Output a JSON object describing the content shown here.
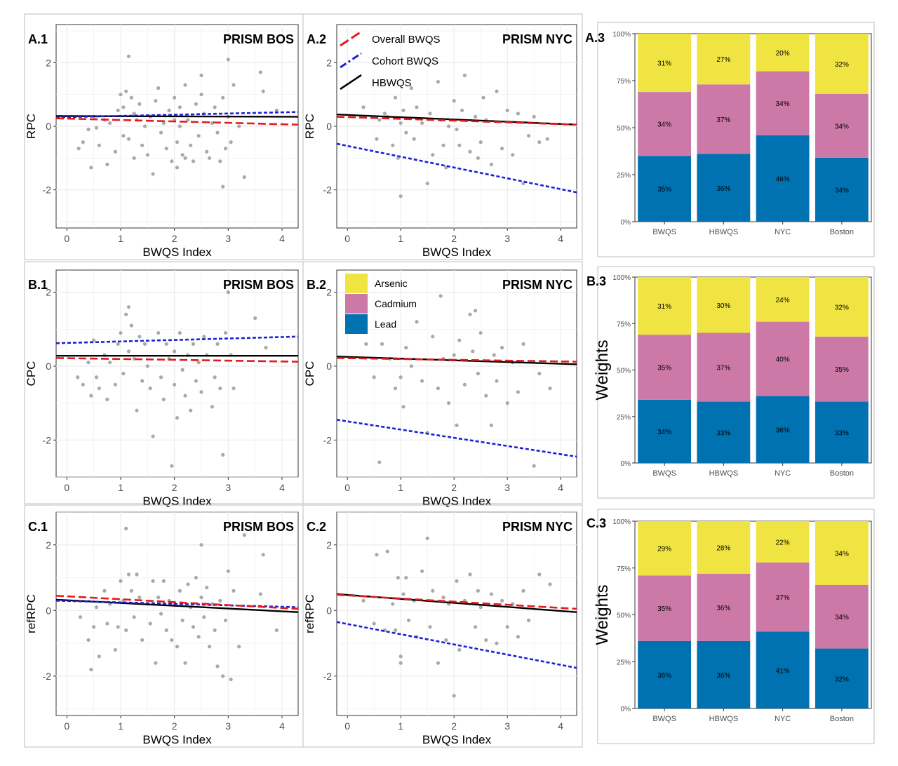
{
  "colors": {
    "overall": "#e41a1c",
    "cohort": "#1f1fd6",
    "hbwqs": "#000000",
    "point": "#a9a9a9",
    "arsenic": "#f0e442",
    "cadmium": "#cc79a7",
    "lead": "#0072b2"
  },
  "legends": {
    "lines": [
      {
        "key": "overall",
        "label": "Overall BWQS"
      },
      {
        "key": "cohort",
        "label": "Cohort BWQS"
      },
      {
        "key": "hbwqs",
        "label": "HBWQS"
      }
    ],
    "metals": [
      {
        "key": "arsenic",
        "label": "Arsenic"
      },
      {
        "key": "cadmium",
        "label": "Cadmium"
      },
      {
        "key": "lead",
        "label": "Lead"
      }
    ]
  },
  "chart_data": [
    {
      "id": "A1",
      "type": "scatter",
      "panel": "A.1",
      "title": "PRISM BOS",
      "xlabel": "BWQS Index",
      "ylabel": "RPC",
      "xlim": [
        -0.2,
        4.3
      ],
      "ylim": [
        -3.2,
        3.2
      ],
      "xticks": [
        0,
        1,
        2,
        3,
        4
      ],
      "yticks": [
        -2,
        0,
        2
      ],
      "lines": [
        {
          "key": "hbwqs",
          "x": [
            -0.2,
            4.3
          ],
          "y": [
            0.32,
            0.3
          ]
        },
        {
          "key": "cohort",
          "x": [
            -0.2,
            4.3
          ],
          "y": [
            0.28,
            0.45
          ]
        },
        {
          "key": "overall",
          "x": [
            -0.2,
            4.3
          ],
          "y": [
            0.25,
            0.05
          ]
        }
      ],
      "points": {
        "x": [
          0.22,
          0.3,
          0.4,
          0.45,
          0.5,
          0.55,
          0.6,
          0.7,
          0.75,
          0.8,
          0.9,
          0.95,
          1.0,
          1.05,
          1.05,
          1.1,
          1.15,
          1.15,
          1.2,
          1.25,
          1.25,
          1.3,
          1.35,
          1.4,
          1.45,
          1.5,
          1.55,
          1.6,
          1.65,
          1.7,
          1.75,
          1.8,
          1.85,
          1.9,
          1.95,
          2.0,
          2.0,
          2.05,
          2.05,
          2.1,
          2.1,
          2.15,
          2.2,
          2.2,
          2.25,
          2.3,
          2.35,
          2.4,
          2.45,
          2.5,
          2.5,
          2.55,
          2.6,
          2.65,
          2.7,
          2.75,
          2.8,
          2.85,
          2.9,
          2.9,
          2.95,
          3.0,
          3.0,
          3.05,
          3.1,
          3.2,
          3.3,
          3.6,
          3.65,
          3.9
        ],
        "y": [
          -0.7,
          -0.5,
          -0.1,
          -1.3,
          0.3,
          -0.05,
          -0.6,
          0.2,
          -1.2,
          0.1,
          -0.8,
          0.5,
          1.0,
          -0.3,
          0.6,
          1.1,
          2.2,
          -0.4,
          0.9,
          0.4,
          -1.0,
          0.2,
          0.7,
          -0.6,
          0.0,
          -0.9,
          0.3,
          -1.5,
          0.8,
          1.2,
          -0.2,
          0.1,
          -0.7,
          0.5,
          -1.1,
          0.2,
          0.9,
          -0.5,
          -1.3,
          0.0,
          0.6,
          -0.9,
          1.3,
          -1.0,
          0.2,
          -0.6,
          -1.1,
          0.7,
          -0.3,
          1.0,
          1.6,
          0.4,
          -0.8,
          -1.0,
          0.1,
          0.6,
          -0.2,
          -1.1,
          0.9,
          -1.9,
          -0.7,
          0.3,
          2.1,
          -0.5,
          1.3,
          0.0,
          -1.6,
          1.7,
          1.1,
          0.5
        ]
      }
    },
    {
      "id": "A2",
      "type": "scatter",
      "panel": "A.2",
      "title": "PRISM NYC",
      "xlabel": "BWQS Index",
      "ylabel": "RPC",
      "xlim": [
        -0.2,
        4.3
      ],
      "ylim": [
        -3.2,
        3.2
      ],
      "xticks": [
        0,
        1,
        2,
        3,
        4
      ],
      "yticks": [
        -2,
        0,
        2
      ],
      "lines": [
        {
          "key": "hbwqs",
          "x": [
            -0.2,
            4.3
          ],
          "y": [
            0.37,
            0.05
          ]
        },
        {
          "key": "cohort",
          "x": [
            -0.2,
            4.3
          ],
          "y": [
            -0.55,
            -2.08
          ]
        },
        {
          "key": "overall",
          "x": [
            -0.2,
            4.3
          ],
          "y": [
            0.3,
            0.05
          ]
        }
      ],
      "points": {
        "x": [
          0.3,
          0.55,
          0.6,
          0.7,
          0.75,
          0.85,
          0.9,
          0.95,
          1.0,
          1.0,
          1.05,
          1.1,
          1.2,
          1.25,
          1.3,
          1.4,
          1.5,
          1.55,
          1.6,
          1.7,
          1.75,
          1.8,
          1.85,
          1.9,
          2.0,
          2.05,
          2.1,
          2.15,
          2.2,
          2.3,
          2.4,
          2.45,
          2.5,
          2.55,
          2.6,
          2.7,
          2.8,
          2.9,
          3.0,
          3.1,
          3.2,
          3.3,
          3.4,
          3.5,
          3.6,
          3.75
        ],
        "y": [
          0.6,
          -0.4,
          0.2,
          0.4,
          0.3,
          -0.6,
          0.9,
          -1.0,
          0.1,
          -2.2,
          0.5,
          -0.2,
          1.2,
          -0.4,
          0.6,
          0.1,
          -1.8,
          0.4,
          -0.9,
          1.4,
          0.2,
          -0.6,
          -1.3,
          0.0,
          0.8,
          -0.1,
          -0.6,
          0.5,
          1.6,
          -0.8,
          0.3,
          -1.0,
          -0.5,
          0.9,
          0.2,
          -1.2,
          1.1,
          -0.7,
          0.5,
          -0.9,
          0.4,
          -1.8,
          -0.3,
          0.3,
          -0.5,
          -0.4
        ]
      }
    },
    {
      "id": "A3",
      "type": "bar",
      "stacked": true,
      "panel": "A.3",
      "ylabel": "",
      "categories": [
        "BWQS",
        "HBWQS",
        "NYC",
        "Boston"
      ],
      "yticks": [
        "0%",
        "25%",
        "50%",
        "75%",
        "100%"
      ],
      "series": [
        {
          "key": "lead",
          "values": [
            35,
            36,
            46,
            34
          ],
          "labels": [
            "35%",
            "36%",
            "46%",
            "34%"
          ]
        },
        {
          "key": "cadmium",
          "values": [
            34,
            37,
            34,
            34
          ],
          "labels": [
            "34%",
            "37%",
            "34%",
            "34%"
          ]
        },
        {
          "key": "arsenic",
          "values": [
            31,
            27,
            20,
            32
          ],
          "labels": [
            "31%",
            "27%",
            "20%",
            "32%"
          ]
        }
      ]
    },
    {
      "id": "B1",
      "type": "scatter",
      "panel": "B.1",
      "title": "PRISM BOS",
      "xlabel": "BWQS Index",
      "ylabel": "CPC",
      "xlim": [
        -0.2,
        4.3
      ],
      "ylim": [
        -3.0,
        2.6
      ],
      "xticks": [
        0,
        1,
        2,
        3,
        4
      ],
      "yticks": [
        -2,
        0,
        2
      ],
      "lines": [
        {
          "key": "hbwqs",
          "x": [
            -0.2,
            4.3
          ],
          "y": [
            0.28,
            0.28
          ]
        },
        {
          "key": "cohort",
          "x": [
            -0.2,
            4.3
          ],
          "y": [
            0.62,
            0.8
          ]
        },
        {
          "key": "overall",
          "x": [
            -0.2,
            4.3
          ],
          "y": [
            0.22,
            0.12
          ]
        }
      ],
      "points": {
        "x": [
          0.2,
          0.3,
          0.4,
          0.45,
          0.5,
          0.55,
          0.6,
          0.7,
          0.75,
          0.8,
          0.9,
          0.95,
          1.0,
          1.05,
          1.1,
          1.15,
          1.15,
          1.2,
          1.25,
          1.3,
          1.35,
          1.4,
          1.45,
          1.5,
          1.55,
          1.6,
          1.7,
          1.75,
          1.8,
          1.85,
          1.9,
          1.95,
          2.0,
          2.0,
          2.05,
          2.1,
          2.15,
          2.2,
          2.25,
          2.3,
          2.35,
          2.4,
          2.45,
          2.5,
          2.55,
          2.6,
          2.7,
          2.75,
          2.8,
          2.85,
          2.9,
          2.95,
          3.0,
          3.05,
          3.1,
          3.5,
          3.7
        ],
        "y": [
          -0.3,
          -0.5,
          0.1,
          -0.8,
          0.7,
          -0.3,
          -0.6,
          0.3,
          -0.9,
          0.1,
          -0.5,
          0.6,
          0.9,
          -0.2,
          1.4,
          1.6,
          0.4,
          1.1,
          0.2,
          -1.2,
          0.8,
          -0.4,
          0.6,
          0.0,
          -0.6,
          -1.9,
          0.9,
          -0.3,
          -0.9,
          0.6,
          0.2,
          -2.7,
          -0.5,
          0.4,
          -1.4,
          0.9,
          -0.1,
          -0.8,
          0.3,
          -1.2,
          0.6,
          -0.4,
          0.1,
          -0.7,
          0.8,
          0.3,
          -1.1,
          -0.3,
          0.6,
          -0.6,
          -2.4,
          0.9,
          2.0,
          0.3,
          -0.6,
          1.3,
          0.5
        ]
      }
    },
    {
      "id": "B2",
      "type": "scatter",
      "panel": "B.2",
      "title": "PRISM NYC",
      "xlabel": "BWQS Index",
      "ylabel": "CPC",
      "xlim": [
        -0.2,
        4.3
      ],
      "ylim": [
        -3.0,
        2.6
      ],
      "xticks": [
        0,
        1,
        2,
        3,
        4
      ],
      "yticks": [
        -2,
        0,
        2
      ],
      "lines": [
        {
          "key": "hbwqs",
          "x": [
            -0.2,
            4.3
          ],
          "y": [
            0.26,
            0.05
          ]
        },
        {
          "key": "cohort",
          "x": [
            -0.2,
            4.3
          ],
          "y": [
            -1.45,
            -2.45
          ]
        },
        {
          "key": "overall",
          "x": [
            -0.2,
            4.3
          ],
          "y": [
            0.22,
            0.12
          ]
        }
      ],
      "points": {
        "x": [
          0.35,
          0.5,
          0.6,
          0.65,
          0.8,
          0.9,
          1.0,
          1.05,
          1.1,
          1.2,
          1.3,
          1.4,
          1.5,
          1.6,
          1.7,
          1.75,
          1.8,
          1.9,
          2.0,
          2.05,
          2.1,
          2.2,
          2.3,
          2.35,
          2.4,
          2.45,
          2.5,
          2.6,
          2.7,
          2.75,
          2.8,
          2.9,
          3.0,
          3.1,
          3.2,
          3.3,
          3.5,
          3.6,
          3.8
        ],
        "y": [
          0.6,
          -0.3,
          -2.6,
          0.6,
          0.2,
          -0.6,
          -0.3,
          -1.1,
          0.5,
          0.0,
          1.2,
          -0.4,
          -1.8,
          0.8,
          -0.6,
          1.9,
          0.2,
          -1.0,
          0.3,
          -1.6,
          0.7,
          -0.5,
          1.4,
          0.4,
          1.5,
          -0.2,
          0.9,
          -0.8,
          -1.6,
          0.3,
          -0.4,
          0.5,
          -1.0,
          0.1,
          -0.7,
          0.6,
          -2.7,
          -0.2,
          -0.6
        ]
      }
    },
    {
      "id": "B3",
      "type": "bar",
      "stacked": true,
      "panel": "B.3",
      "ylabel": "Weights",
      "categories": [
        "BWQS",
        "HBWQS",
        "NYC",
        "Boston"
      ],
      "yticks": [
        "0%",
        "25%",
        "50%",
        "75%",
        "100%"
      ],
      "series": [
        {
          "key": "lead",
          "values": [
            34,
            33,
            36,
            33
          ],
          "labels": [
            "34%",
            "33%",
            "36%",
            "33%"
          ]
        },
        {
          "key": "cadmium",
          "values": [
            35,
            37,
            40,
            35
          ],
          "labels": [
            "35%",
            "37%",
            "40%",
            "35%"
          ]
        },
        {
          "key": "arsenic",
          "values": [
            31,
            30,
            24,
            32
          ],
          "labels": [
            "31%",
            "30%",
            "24%",
            "32%"
          ]
        }
      ]
    },
    {
      "id": "C1",
      "type": "scatter",
      "panel": "C.1",
      "title": "PRISM BOS",
      "xlabel": "BWQS Index",
      "ylabel": "refRPC",
      "xlim": [
        -0.2,
        4.3
      ],
      "ylim": [
        -3.2,
        3.0
      ],
      "xticks": [
        0,
        1,
        2,
        3,
        4
      ],
      "yticks": [
        -2,
        0,
        2
      ],
      "lines": [
        {
          "key": "hbwqs",
          "x": [
            -0.2,
            4.3
          ],
          "y": [
            0.33,
            -0.05
          ]
        },
        {
          "key": "cohort",
          "x": [
            -0.2,
            4.3
          ],
          "y": [
            0.3,
            0.1
          ]
        },
        {
          "key": "overall",
          "x": [
            -0.2,
            4.3
          ],
          "y": [
            0.45,
            0.05
          ]
        }
      ],
      "points": {
        "x": [
          0.25,
          0.4,
          0.45,
          0.5,
          0.55,
          0.6,
          0.7,
          0.75,
          0.8,
          0.9,
          0.95,
          1.0,
          1.05,
          1.1,
          1.1,
          1.15,
          1.2,
          1.25,
          1.3,
          1.35,
          1.4,
          1.5,
          1.55,
          1.6,
          1.65,
          1.7,
          1.75,
          1.8,
          1.85,
          1.9,
          1.95,
          2.0,
          2.05,
          2.1,
          2.15,
          2.2,
          2.25,
          2.3,
          2.35,
          2.4,
          2.45,
          2.5,
          2.5,
          2.55,
          2.6,
          2.65,
          2.7,
          2.75,
          2.8,
          2.85,
          2.9,
          2.95,
          3.0,
          3.05,
          3.1,
          3.2,
          3.3,
          3.6,
          3.65,
          3.9
        ],
        "y": [
          -0.2,
          -0.9,
          -1.8,
          -0.5,
          0.1,
          -1.4,
          0.6,
          -0.4,
          0.2,
          -1.2,
          -0.5,
          0.9,
          0.3,
          -0.6,
          2.5,
          1.1,
          0.6,
          -0.2,
          1.1,
          0.4,
          -0.9,
          0.2,
          -0.4,
          0.9,
          -1.6,
          0.4,
          -0.1,
          0.9,
          -0.6,
          0.3,
          -0.9,
          0.2,
          -1.1,
          0.6,
          -0.3,
          -1.6,
          0.8,
          0.1,
          -0.5,
          1.0,
          -0.8,
          2.0,
          0.4,
          -0.2,
          0.7,
          -1.1,
          0.2,
          -0.6,
          -1.7,
          0.3,
          -2.0,
          -0.3,
          1.2,
          -2.1,
          0.6,
          -1.1,
          2.3,
          0.5,
          1.7,
          -0.6
        ]
      }
    },
    {
      "id": "C2",
      "type": "scatter",
      "panel": "C.2",
      "title": "PRISM NYC",
      "xlabel": "BWQS Index",
      "ylabel": "refRPC",
      "xlim": [
        -0.2,
        4.3
      ],
      "ylim": [
        -3.2,
        3.0
      ],
      "xticks": [
        0,
        1,
        2,
        3,
        4
      ],
      "yticks": [
        -2,
        0,
        2
      ],
      "lines": [
        {
          "key": "hbwqs",
          "x": [
            -0.2,
            4.3
          ],
          "y": [
            0.5,
            -0.05
          ]
        },
        {
          "key": "cohort",
          "x": [
            -0.2,
            4.3
          ],
          "y": [
            -0.35,
            -1.75
          ]
        },
        {
          "key": "overall",
          "x": [
            -0.2,
            4.3
          ],
          "y": [
            0.48,
            0.05
          ]
        }
      ],
      "points": {
        "x": [
          0.3,
          0.5,
          0.55,
          0.7,
          0.75,
          0.85,
          0.9,
          0.95,
          1.0,
          1.0,
          1.05,
          1.1,
          1.15,
          1.25,
          1.3,
          1.4,
          1.5,
          1.55,
          1.6,
          1.7,
          1.8,
          1.85,
          1.9,
          2.0,
          2.05,
          2.1,
          2.2,
          2.3,
          2.4,
          2.45,
          2.5,
          2.6,
          2.7,
          2.8,
          2.9,
          3.0,
          3.1,
          3.2,
          3.3,
          3.4,
          3.6,
          3.8
        ],
        "y": [
          0.3,
          -0.4,
          1.7,
          -0.6,
          1.8,
          0.2,
          -0.6,
          1.0,
          -1.4,
          -1.6,
          0.5,
          1.0,
          -0.3,
          0.3,
          -0.8,
          1.2,
          2.2,
          -0.5,
          0.6,
          -1.6,
          0.4,
          -0.9,
          0.2,
          -2.6,
          0.9,
          -1.2,
          0.3,
          1.1,
          -0.5,
          0.6,
          0.1,
          -0.9,
          0.5,
          -1.0,
          0.3,
          -0.5,
          0.2,
          -0.8,
          0.6,
          -0.3,
          1.1,
          0.8
        ]
      }
    },
    {
      "id": "C3",
      "type": "bar",
      "stacked": true,
      "panel": "C.3",
      "ylabel": "Weights",
      "categories": [
        "BWQS",
        "HBWQS",
        "NYC",
        "Boston"
      ],
      "yticks": [
        "0%",
        "25%",
        "50%",
        "75%",
        "100%"
      ],
      "series": [
        {
          "key": "lead",
          "values": [
            36,
            36,
            41,
            32
          ],
          "labels": [
            "36%",
            "36%",
            "41%",
            "32%"
          ]
        },
        {
          "key": "cadmium",
          "values": [
            35,
            36,
            37,
            34
          ],
          "labels": [
            "35%",
            "36%",
            "37%",
            "34%"
          ]
        },
        {
          "key": "arsenic",
          "values": [
            29,
            28,
            22,
            34
          ],
          "labels": [
            "29%",
            "28%",
            "22%",
            "34%"
          ]
        }
      ]
    }
  ]
}
